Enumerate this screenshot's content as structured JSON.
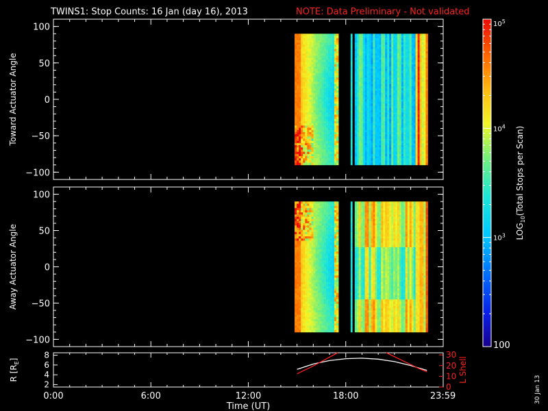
{
  "header": {
    "title": "TWINS1: Stop Counts: 16 Jan (day  16), 2013",
    "note": "NOTE: Data Preliminary - Not validated"
  },
  "stamp": "30 Jan 13",
  "colors": {
    "background": "#000000",
    "axes": "#ffffff",
    "note": "#ff2020",
    "orbit_r": "#ffffff",
    "orbit_l": "#ff2020"
  },
  "chart_data": [
    {
      "type": "heatmap",
      "panel": "toward",
      "ylabel": "Toward Actuator Angle",
      "ylim": [
        -110,
        110
      ],
      "yticks": [
        -100,
        -50,
        0,
        50,
        100
      ],
      "xlim": [
        0,
        24
      ],
      "data_blocks": [
        {
          "x": [
            14.85,
            17.55
          ],
          "y": [
            -90,
            90
          ],
          "style": "warm-decay"
        },
        {
          "x": [
            18.3,
            18.4
          ],
          "y": [
            -90,
            90
          ],
          "style": "cyan"
        },
        {
          "x": [
            18.55,
            23.05
          ],
          "y": [
            -90,
            90
          ],
          "style": "striped-cool"
        }
      ]
    },
    {
      "type": "heatmap",
      "panel": "away",
      "ylabel": "Away Actuator Angle",
      "ylim": [
        -110,
        110
      ],
      "yticks": [
        -100,
        -50,
        0,
        50,
        100
      ],
      "xlim": [
        0,
        24
      ],
      "data_blocks": [
        {
          "x": [
            14.85,
            17.55
          ],
          "y": [
            -90,
            90
          ],
          "style": "warm-decay"
        },
        {
          "x": [
            18.3,
            18.4
          ],
          "y": [
            -90,
            90
          ],
          "style": "cyan"
        },
        {
          "x": [
            18.55,
            23.05
          ],
          "y": [
            -90,
            90
          ],
          "style": "striped-warm"
        }
      ]
    },
    {
      "type": "line",
      "panel": "orbit",
      "ylabel_left": "R [R",
      "ylabel_left_sub": "E",
      "ylabel_left_close": "]",
      "ylabel_right": "L Shell",
      "ylim_left": [
        1.5,
        8.5
      ],
      "yticks_left": [
        2,
        4,
        6,
        8
      ],
      "ylim_right": [
        0,
        32
      ],
      "yticks_right": [
        0,
        10,
        20,
        30
      ],
      "xlabel": "Time (UT)",
      "xlim": [
        0,
        24
      ],
      "xticks": [
        0,
        6,
        12,
        18,
        23.983
      ],
      "xtick_labels": [
        "0:00",
        "6:00",
        "12:00",
        "18:00",
        "23:59"
      ],
      "series": [
        {
          "axis": "left",
          "color": "#ffffff",
          "x": [
            15.0,
            16.0,
            17.0,
            18.0,
            19.0,
            20.0,
            21.0,
            22.0,
            23.0
          ],
          "y": [
            5.1,
            6.2,
            6.9,
            7.3,
            7.4,
            7.2,
            6.7,
            5.9,
            4.9
          ]
        },
        {
          "axis": "left",
          "color": "#ff2020",
          "x": [
            15.0,
            16.0,
            17.0,
            17.5
          ],
          "y": [
            4.2,
            5.8,
            7.6,
            8.5
          ]
        },
        {
          "axis": "left",
          "color": "#ff2020",
          "x": [
            20.5,
            21.5,
            22.5,
            23.0
          ],
          "y": [
            8.5,
            6.9,
            5.3,
            4.6
          ]
        }
      ]
    }
  ],
  "colorbar": {
    "label": "LOG",
    "label_sub": "10",
    "label_rest": "(Total Stops per Scan)",
    "range": [
      100,
      100000
    ],
    "ticks": [
      {
        "value": 100,
        "base": "100",
        "exp": ""
      },
      {
        "value": 1000,
        "base": "10",
        "exp": "3"
      },
      {
        "value": 10000,
        "base": "10",
        "exp": "4"
      },
      {
        "value": 100000,
        "base": "10",
        "exp": "5"
      }
    ]
  }
}
